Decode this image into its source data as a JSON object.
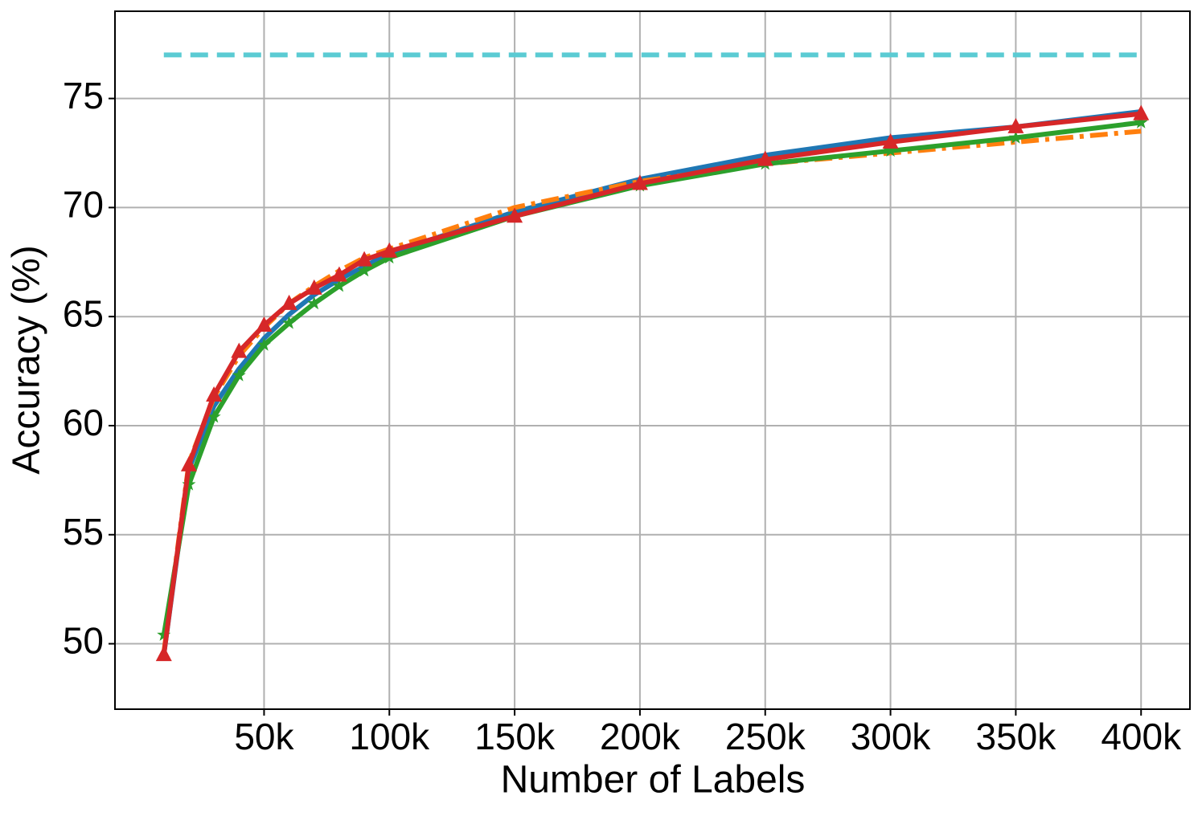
{
  "chart_data": {
    "type": "line",
    "xlabel": "Number of Labels",
    "ylabel": "Accuracy (%)",
    "x": [
      10000,
      20000,
      30000,
      40000,
      50000,
      60000,
      70000,
      80000,
      90000,
      100000,
      150000,
      200000,
      250000,
      300000,
      350000,
      400000
    ],
    "series": [
      {
        "color": "#5bcbd3",
        "dash": "dashed",
        "marker": "none",
        "values": [
          77,
          77,
          77,
          77,
          77,
          77,
          77,
          77,
          77,
          77,
          77,
          77,
          77,
          77,
          77,
          77
        ]
      },
      {
        "color": "#1f77b4",
        "dash": "solid",
        "marker": "none",
        "values": [
          49.5,
          58.0,
          60.9,
          62.6,
          64.0,
          65.1,
          66.0,
          66.7,
          67.3,
          67.9,
          69.8,
          71.3,
          72.4,
          73.2,
          73.7,
          74.4
        ]
      },
      {
        "color": "#ff7f0e",
        "dash": "dashdot",
        "marker": "none",
        "values": [
          49.6,
          58.3,
          61.3,
          63.2,
          64.5,
          65.6,
          66.4,
          67.1,
          67.7,
          68.1,
          70.0,
          71.2,
          72.0,
          72.5,
          73.0,
          73.5
        ]
      },
      {
        "color": "#2ca02c",
        "dash": "solid",
        "marker": "star",
        "values": [
          50.4,
          57.3,
          60.4,
          62.3,
          63.7,
          64.7,
          65.6,
          66.4,
          67.1,
          67.7,
          69.6,
          71.0,
          72.0,
          72.6,
          73.2,
          73.9
        ]
      },
      {
        "color": "#d62728",
        "dash": "solid",
        "marker": "triangle",
        "values": [
          49.5,
          58.2,
          61.4,
          63.4,
          64.6,
          65.6,
          66.3,
          66.9,
          67.6,
          68.0,
          69.6,
          71.1,
          72.2,
          73.0,
          73.7,
          74.3
        ]
      }
    ],
    "xlim": [
      -9500,
      419500
    ],
    "xticks": [
      {
        "value": 50000,
        "label": "50k"
      },
      {
        "value": 100000,
        "label": "100k"
      },
      {
        "value": 150000,
        "label": "150k"
      },
      {
        "value": 200000,
        "label": "200k"
      },
      {
        "value": 250000,
        "label": "250k"
      },
      {
        "value": 300000,
        "label": "300k"
      },
      {
        "value": 350000,
        "label": "350k"
      },
      {
        "value": 400000,
        "label": "400k"
      }
    ],
    "ylim": [
      47,
      79
    ],
    "yticks": [
      50,
      55,
      60,
      65,
      70,
      75
    ],
    "grid": true
  }
}
